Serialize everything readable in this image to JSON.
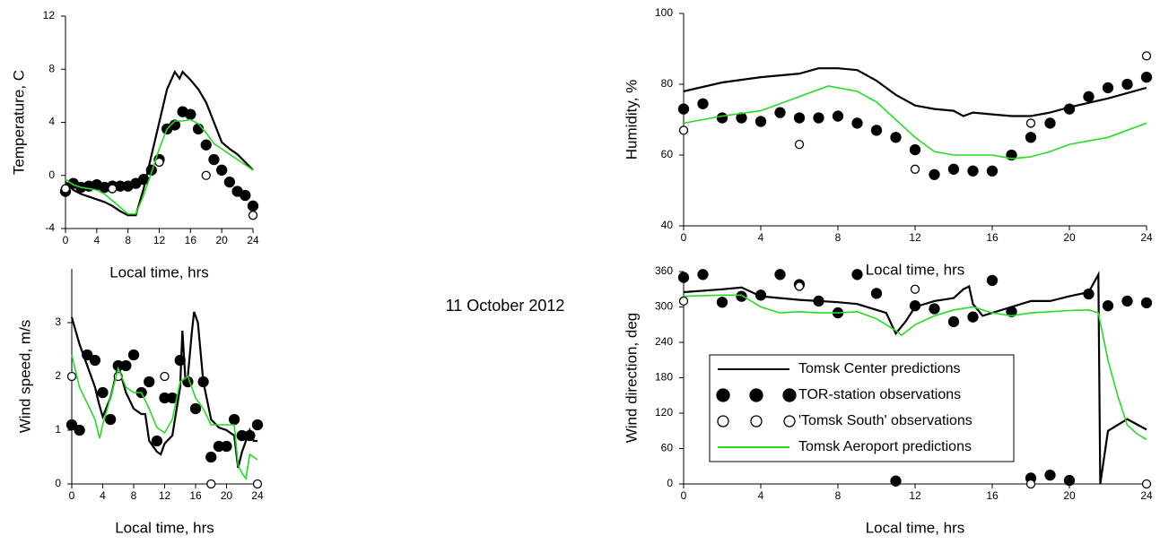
{
  "chart_data": [
    {
      "type": "line",
      "xlabel": "Local time, hrs",
      "ylabel": "Temperature, C",
      "xlim": [
        0,
        24
      ],
      "xticks": [
        0,
        4,
        8,
        12,
        16,
        20,
        24
      ],
      "ylim": [
        -4,
        12
      ],
      "yticks": [
        -4,
        0,
        4,
        8,
        12
      ],
      "series": [
        {
          "color": "#000000",
          "marker": "none",
          "x": [
            0,
            1,
            2,
            3,
            4,
            5,
            6,
            7,
            8,
            9,
            10,
            11,
            12,
            13,
            14,
            14.6,
            15,
            16,
            17,
            18,
            19,
            20,
            21,
            22,
            23,
            24
          ],
          "values": [
            -0.5,
            -1.1,
            -1.4,
            -1.6,
            -1.8,
            -2.0,
            -2.3,
            -2.7,
            -3.0,
            -3.0,
            -1.0,
            1.5,
            4.0,
            6.5,
            7.8,
            7.3,
            7.8,
            7.2,
            6.5,
            5.5,
            4.0,
            2.5,
            2.0,
            1.6,
            1.0,
            0.4
          ]
        },
        {
          "color": "#000000",
          "marker": "filled",
          "x": [
            0,
            1,
            2,
            3,
            4,
            5,
            6,
            7,
            8,
            9,
            10,
            11,
            12,
            13,
            14,
            15,
            16,
            17,
            18,
            19,
            20,
            21,
            22,
            23,
            24
          ],
          "values": [
            -1.2,
            -0.6,
            -0.9,
            -0.8,
            -0.7,
            -0.9,
            -0.8,
            -0.8,
            -0.8,
            -0.6,
            -0.3,
            0.4,
            1.2,
            3.5,
            3.8,
            4.8,
            4.6,
            3.5,
            2.3,
            1.2,
            0.4,
            -0.5,
            -1.2,
            -1.5,
            -2.3
          ]
        },
        {
          "color": "#000000",
          "marker": "open",
          "x": [
            0,
            6,
            12,
            18,
            24
          ],
          "values": [
            -1,
            -1,
            1,
            0,
            -3
          ]
        },
        {
          "color": "#22dd22",
          "marker": "none",
          "x": [
            0,
            1,
            2,
            3,
            4,
            5,
            6,
            7,
            8,
            9,
            10,
            11,
            12,
            13,
            14,
            15,
            16,
            17,
            18,
            19,
            20,
            21,
            22,
            23,
            24
          ],
          "values": [
            -0.3,
            -0.7,
            -0.9,
            -1.0,
            -1.1,
            -1.4,
            -1.9,
            -2.4,
            -2.9,
            -2.9,
            -1.5,
            0.2,
            2.0,
            3.5,
            4.1,
            4.1,
            4.2,
            3.9,
            3.2,
            2.4,
            2.0,
            1.6,
            1.2,
            0.8,
            0.4
          ]
        }
      ]
    },
    {
      "type": "line",
      "xlabel": "Local time, hrs",
      "ylabel": "Humidity, %",
      "xlim": [
        0,
        24
      ],
      "xticks": [
        0,
        4,
        8,
        12,
        16,
        20,
        24
      ],
      "ylim": [
        40,
        100
      ],
      "yticks": [
        40,
        60,
        80,
        100
      ],
      "series": [
        {
          "color": "#000000",
          "marker": "none",
          "x": [
            0,
            2,
            4,
            6,
            7,
            8,
            9,
            10,
            11,
            12,
            13,
            14,
            14.5,
            15,
            16,
            17,
            18,
            19,
            20,
            22,
            24
          ],
          "values": [
            78,
            80.5,
            82,
            83,
            84.5,
            84.5,
            84,
            81,
            77,
            74,
            73,
            72.5,
            71,
            72,
            71.5,
            71,
            71,
            72,
            73.5,
            76,
            79
          ]
        },
        {
          "color": "#000000",
          "marker": "filled",
          "x": [
            0,
            1,
            2,
            3,
            4,
            5,
            6,
            7,
            8,
            9,
            10,
            11,
            12,
            13,
            14,
            15,
            16,
            17,
            18,
            19,
            20,
            21,
            22,
            23,
            24
          ],
          "values": [
            73,
            74.5,
            70.5,
            70.5,
            69.5,
            72,
            70.5,
            70.5,
            71,
            69,
            67,
            65,
            61.5,
            54.5,
            56,
            55.5,
            55.5,
            60,
            65,
            69,
            73,
            76.5,
            79,
            80,
            82
          ]
        },
        {
          "color": "#000000",
          "marker": "open",
          "x": [
            0,
            6,
            12,
            18,
            24
          ],
          "values": [
            67,
            63,
            56,
            69,
            88
          ]
        },
        {
          "color": "#22dd22",
          "marker": "none",
          "x": [
            0,
            2,
            4,
            6,
            7.5,
            9,
            10,
            11,
            12,
            13,
            14,
            16,
            17,
            18,
            19,
            20,
            22,
            24
          ],
          "values": [
            69,
            71,
            72.5,
            76.5,
            79.5,
            78,
            75,
            70,
            65,
            61,
            60,
            60,
            59,
            59.5,
            61,
            63,
            65,
            69
          ]
        }
      ]
    },
    {
      "type": "line",
      "xlabel": "Local time, hrs",
      "ylabel": "Wind speed, m/s",
      "annotation": "11 October 2012",
      "xlim": [
        0,
        24
      ],
      "xticks": [
        0,
        4,
        8,
        12,
        16,
        20,
        24
      ],
      "ylim": [
        0,
        4
      ],
      "yticks": [
        0,
        1,
        2,
        3
      ],
      "series": [
        {
          "color": "#000000",
          "marker": "none",
          "x": [
            0,
            1,
            2,
            3,
            3.5,
            4,
            5,
            6,
            7,
            8,
            9,
            9.5,
            10,
            11,
            11.5,
            12,
            13,
            14,
            14.3,
            14.7,
            15,
            15.5,
            15.8,
            16.3,
            17,
            18,
            19,
            20,
            21,
            21.5,
            22,
            22.5,
            23,
            23.5,
            24
          ],
          "values": [
            3.1,
            2.6,
            2.2,
            1.8,
            1.5,
            1.25,
            1.6,
            2.2,
            1.7,
            1.4,
            1.3,
            1.3,
            0.8,
            0.6,
            0.55,
            0.75,
            0.9,
            1.8,
            2.85,
            1.9,
            2.0,
            2.8,
            3.2,
            3.0,
            1.9,
            1.2,
            1.05,
            1.0,
            0.9,
            0.3,
            0.6,
            0.8,
            1.0,
            0.8,
            0.8
          ]
        },
        {
          "color": "#000000",
          "marker": "filled",
          "x": [
            0,
            1,
            2,
            3,
            4,
            5,
            6,
            7,
            8,
            9,
            10,
            11,
            12,
            13,
            14,
            15,
            16,
            17,
            18,
            19,
            20,
            21,
            22,
            23,
            24
          ],
          "values": [
            1.1,
            1.0,
            2.4,
            2.3,
            1.7,
            1.2,
            2.2,
            2.2,
            2.4,
            1.7,
            1.9,
            0.8,
            1.6,
            1.6,
            2.3,
            1.9,
            1.4,
            1.9,
            0.5,
            0.7,
            0.7,
            1.2,
            0.9,
            0.9,
            1.1
          ]
        },
        {
          "color": "#000000",
          "marker": "open",
          "x": [
            0,
            6,
            12,
            18,
            24
          ],
          "values": [
            2,
            2,
            2,
            0,
            0
          ]
        },
        {
          "color": "#22dd22",
          "marker": "none",
          "x": [
            0,
            1,
            2,
            3,
            3.6,
            4,
            5,
            6,
            7,
            8,
            9,
            10,
            11,
            12,
            13,
            14,
            15,
            16,
            17,
            18,
            19,
            20,
            21,
            21.5,
            22,
            22.5,
            23,
            24
          ],
          "values": [
            2.4,
            1.8,
            1.5,
            1.2,
            0.85,
            1.1,
            1.6,
            2.15,
            1.8,
            1.7,
            1.7,
            1.4,
            1.05,
            0.95,
            1.2,
            1.9,
            2.0,
            1.6,
            1.4,
            1.1,
            1.1,
            1.1,
            1.1,
            0.35,
            0.2,
            0.1,
            0.55,
            0.45
          ]
        }
      ]
    },
    {
      "type": "line",
      "xlabel": "Local time, hrs",
      "ylabel": "Wind direction, deg",
      "legend": "middle left",
      "xlim": [
        0,
        24
      ],
      "xticks": [
        0,
        4,
        8,
        12,
        16,
        20,
        24
      ],
      "ylim": [
        0,
        360
      ],
      "yticks": [
        0,
        60,
        120,
        180,
        240,
        300,
        360
      ],
      "series": [
        {
          "name": "Tomsk Center predictions",
          "color": "#000000",
          "marker": "none",
          "x": [
            0,
            2,
            3,
            4,
            5,
            6,
            7,
            8,
            9,
            10,
            10.5,
            11,
            11.5,
            12,
            13,
            14,
            14.5,
            14.8,
            15,
            15.5,
            16,
            17,
            18,
            19,
            20,
            21,
            21.5,
            21.6,
            22,
            23,
            24
          ],
          "values": [
            325,
            330,
            333,
            318,
            315,
            312,
            310,
            308,
            305,
            295,
            290,
            255,
            275,
            300,
            310,
            315,
            330,
            335,
            305,
            285,
            290,
            300,
            310,
            310,
            318,
            325,
            355,
            0,
            90,
            110,
            92
          ]
        },
        {
          "name": "TOR-station observations",
          "color": "#000000",
          "marker": "filled",
          "x": [
            0,
            1,
            2,
            3,
            4,
            5,
            6,
            7,
            8,
            9,
            10,
            11,
            12,
            13,
            14,
            15,
            16,
            17,
            18,
            19,
            20,
            21,
            22,
            23,
            24
          ],
          "values": [
            350,
            355,
            308,
            318,
            320,
            355,
            338,
            310,
            290,
            355,
            323,
            5,
            302,
            297,
            275,
            283,
            345,
            292,
            10,
            15,
            6,
            322,
            302,
            310,
            307
          ]
        },
        {
          "name": "'Tomsk South' observations",
          "color": "#000000",
          "marker": "open",
          "x": [
            0,
            6,
            12,
            18,
            24
          ],
          "values": [
            310,
            335,
            330,
            0,
            0
          ]
        },
        {
          "name": "Tomsk Aeroport predictions",
          "color": "#22dd22",
          "marker": "none",
          "x": [
            0,
            2,
            3,
            3.5,
            4,
            5,
            6,
            7,
            8,
            9,
            10,
            11,
            11.3,
            12,
            13,
            14,
            15,
            16,
            17,
            18,
            19,
            20,
            21,
            21.5,
            22,
            22.5,
            23,
            23.5,
            24
          ],
          "values": [
            318,
            320,
            320,
            310,
            300,
            290,
            292,
            290,
            290,
            292,
            280,
            260,
            252,
            270,
            285,
            295,
            300,
            290,
            285,
            290,
            292,
            294,
            295,
            290,
            210,
            150,
            100,
            85,
            75
          ]
        }
      ]
    }
  ]
}
